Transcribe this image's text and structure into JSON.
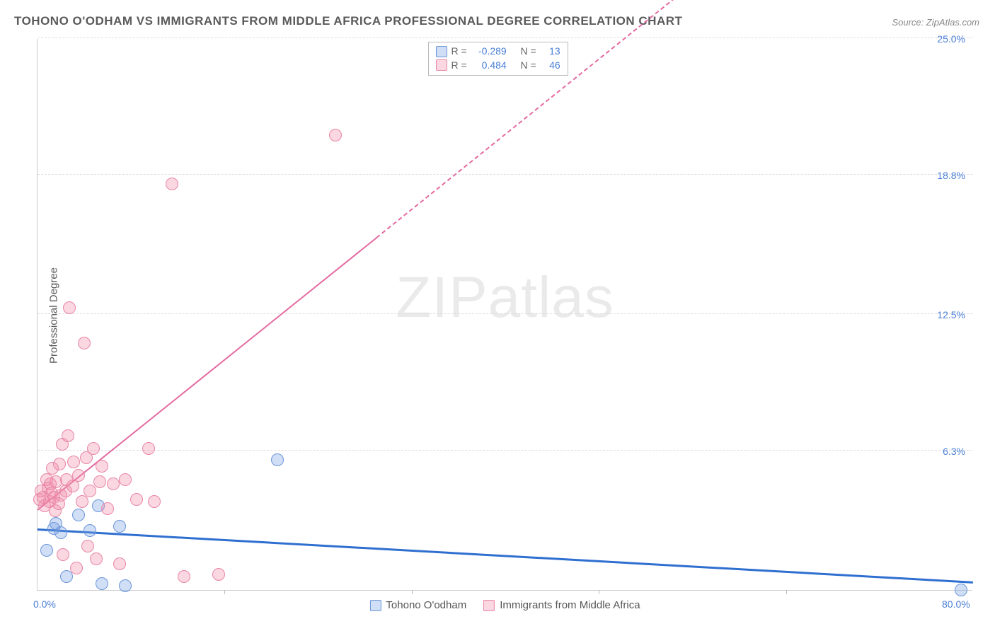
{
  "title": "TOHONO O'ODHAM VS IMMIGRANTS FROM MIDDLE AFRICA PROFESSIONAL DEGREE CORRELATION CHART",
  "source": "Source: ZipAtlas.com",
  "ylabel": "Professional Degree",
  "watermark_a": "ZIP",
  "watermark_b": "atlas",
  "chart": {
    "type": "scatter",
    "xlim": [
      0,
      80
    ],
    "ylim": [
      0,
      25
    ],
    "x_ticks": [
      0,
      80
    ],
    "x_tick_labels": [
      "0.0%",
      "80.0%"
    ],
    "x_minor_spacing": 16,
    "y_ticks": [
      6.3,
      12.5,
      18.8,
      25.0
    ],
    "y_tick_labels": [
      "6.3%",
      "12.5%",
      "18.8%",
      "25.0%"
    ],
    "grid_color": "#dddddd",
    "axis_color": "#cccccc",
    "background_color": "#ffffff",
    "tick_label_color": "#4a7fd6",
    "marker_radius": 9,
    "marker_border_width": 1.4,
    "series": [
      {
        "id": "tohono",
        "label": "Tohono O'odham",
        "R": "-0.289",
        "N": "13",
        "fill": "rgba(120,160,230,0.35)",
        "stroke": "#6b95d9",
        "reg_line_color": "#2f6fd0",
        "reg_line_width": 3,
        "reg": {
          "x1": 0,
          "y1": 2.7,
          "x2": 80,
          "y2": 0.3
        },
        "points": [
          [
            0.8,
            1.8
          ],
          [
            1.4,
            2.8
          ],
          [
            1.6,
            3.0
          ],
          [
            2.0,
            2.6
          ],
          [
            2.5,
            0.6
          ],
          [
            3.5,
            3.4
          ],
          [
            4.5,
            2.7
          ],
          [
            5.2,
            3.8
          ],
          [
            5.5,
            0.3
          ],
          [
            7.0,
            2.9
          ],
          [
            7.5,
            0.2
          ],
          [
            20.5,
            5.9
          ],
          [
            79.0,
            0.0
          ]
        ]
      },
      {
        "id": "immigrants",
        "label": "Immigrants from Middle Africa",
        "R": "0.484",
        "N": "46",
        "fill": "rgba(240,140,170,0.35)",
        "stroke": "#e985a7",
        "reg_line_color": "#e36aa0",
        "reg_line_width": 2.5,
        "reg": {
          "x1": 0,
          "y1": 3.6,
          "x2": 55,
          "y2": 27.0
        },
        "reg_solid_until_x": 29,
        "points": [
          [
            0.2,
            4.1
          ],
          [
            0.3,
            4.5
          ],
          [
            0.5,
            4.2
          ],
          [
            0.6,
            3.8
          ],
          [
            0.8,
            5.0
          ],
          [
            0.9,
            4.6
          ],
          [
            1.0,
            4.0
          ],
          [
            1.1,
            4.8
          ],
          [
            1.2,
            4.4
          ],
          [
            1.3,
            5.5
          ],
          [
            1.4,
            4.2
          ],
          [
            1.5,
            3.6
          ],
          [
            1.6,
            4.9
          ],
          [
            1.8,
            3.9
          ],
          [
            1.9,
            5.7
          ],
          [
            2.0,
            4.3
          ],
          [
            2.1,
            6.6
          ],
          [
            2.2,
            1.6
          ],
          [
            2.4,
            4.5
          ],
          [
            2.5,
            5.0
          ],
          [
            2.6,
            7.0
          ],
          [
            2.7,
            12.8
          ],
          [
            3.0,
            4.7
          ],
          [
            3.1,
            5.8
          ],
          [
            3.3,
            1.0
          ],
          [
            3.5,
            5.2
          ],
          [
            3.8,
            4.0
          ],
          [
            4.0,
            11.2
          ],
          [
            4.2,
            6.0
          ],
          [
            4.3,
            2.0
          ],
          [
            4.5,
            4.5
          ],
          [
            4.8,
            6.4
          ],
          [
            5.0,
            1.4
          ],
          [
            5.3,
            4.9
          ],
          [
            5.5,
            5.6
          ],
          [
            6.0,
            3.7
          ],
          [
            6.5,
            4.8
          ],
          [
            7.0,
            1.2
          ],
          [
            7.5,
            5.0
          ],
          [
            8.5,
            4.1
          ],
          [
            9.5,
            6.4
          ],
          [
            10.0,
            4.0
          ],
          [
            11.5,
            18.4
          ],
          [
            12.5,
            0.6
          ],
          [
            15.5,
            0.7
          ],
          [
            25.5,
            20.6
          ]
        ]
      }
    ]
  },
  "legend_top": {
    "R_label": "R =",
    "N_label": "N ="
  },
  "legend_bottom": [
    {
      "series": "tohono"
    },
    {
      "series": "immigrants"
    }
  ]
}
